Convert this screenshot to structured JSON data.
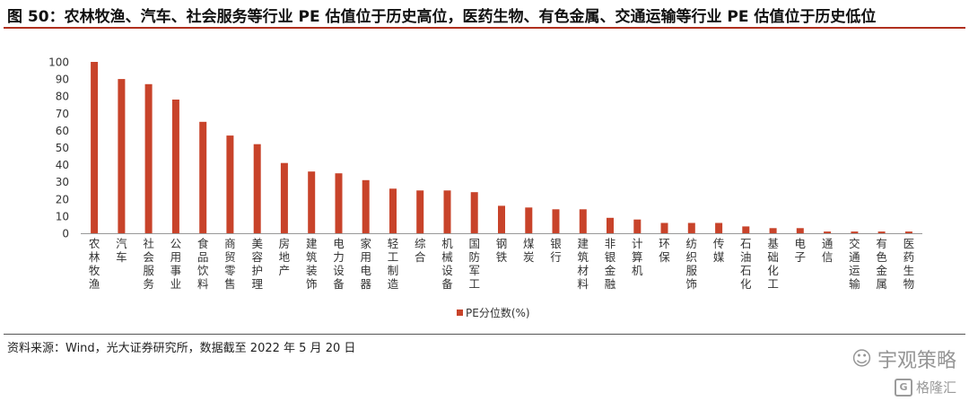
{
  "title": "图 50：农林牧渔、汽车、社会服务等行业 PE 估值位于历史高位，医药生物、有色金属、交通运输等行业 PE 估值位于历史低位",
  "source": "资料来源：Wind，光大证券研究所，数据截至 2022 年 5 月 20 日",
  "watermark": "宇观策略",
  "watermark2": "格隆汇",
  "colors": {
    "bar": "#c8432a",
    "title_rule": "#b0301e"
  },
  "chart_data": {
    "type": "bar",
    "categories": [
      "农林牧渔",
      "汽车",
      "社会服务",
      "公用事业",
      "食品饮料",
      "商贸零售",
      "美容护理",
      "房地产",
      "建筑装饰",
      "电力设备",
      "家用电器",
      "轻工制造",
      "综合",
      "机械设备",
      "国防军工",
      "钢铁",
      "煤炭",
      "银行",
      "建筑材料",
      "非银金融",
      "计算机",
      "环保",
      "纺织服饰",
      "传媒",
      "石油石化",
      "基础化工",
      "电子",
      "通信",
      "交通运输",
      "有色金属",
      "医药生物"
    ],
    "series": [
      {
        "name": "PE分位数(%)",
        "values": [
          100,
          90,
          87,
          78,
          65,
          57,
          52,
          41,
          36,
          35,
          31,
          26,
          25,
          25,
          24,
          16,
          15,
          14,
          14,
          9,
          8,
          6,
          6,
          6,
          4,
          3,
          3,
          1,
          1,
          1,
          1
        ]
      }
    ],
    "ylim": [
      0,
      100
    ],
    "yticks": [
      0,
      10,
      20,
      30,
      40,
      50,
      60,
      70,
      80,
      90,
      100
    ],
    "legend_position": "bottom",
    "grid": false
  }
}
